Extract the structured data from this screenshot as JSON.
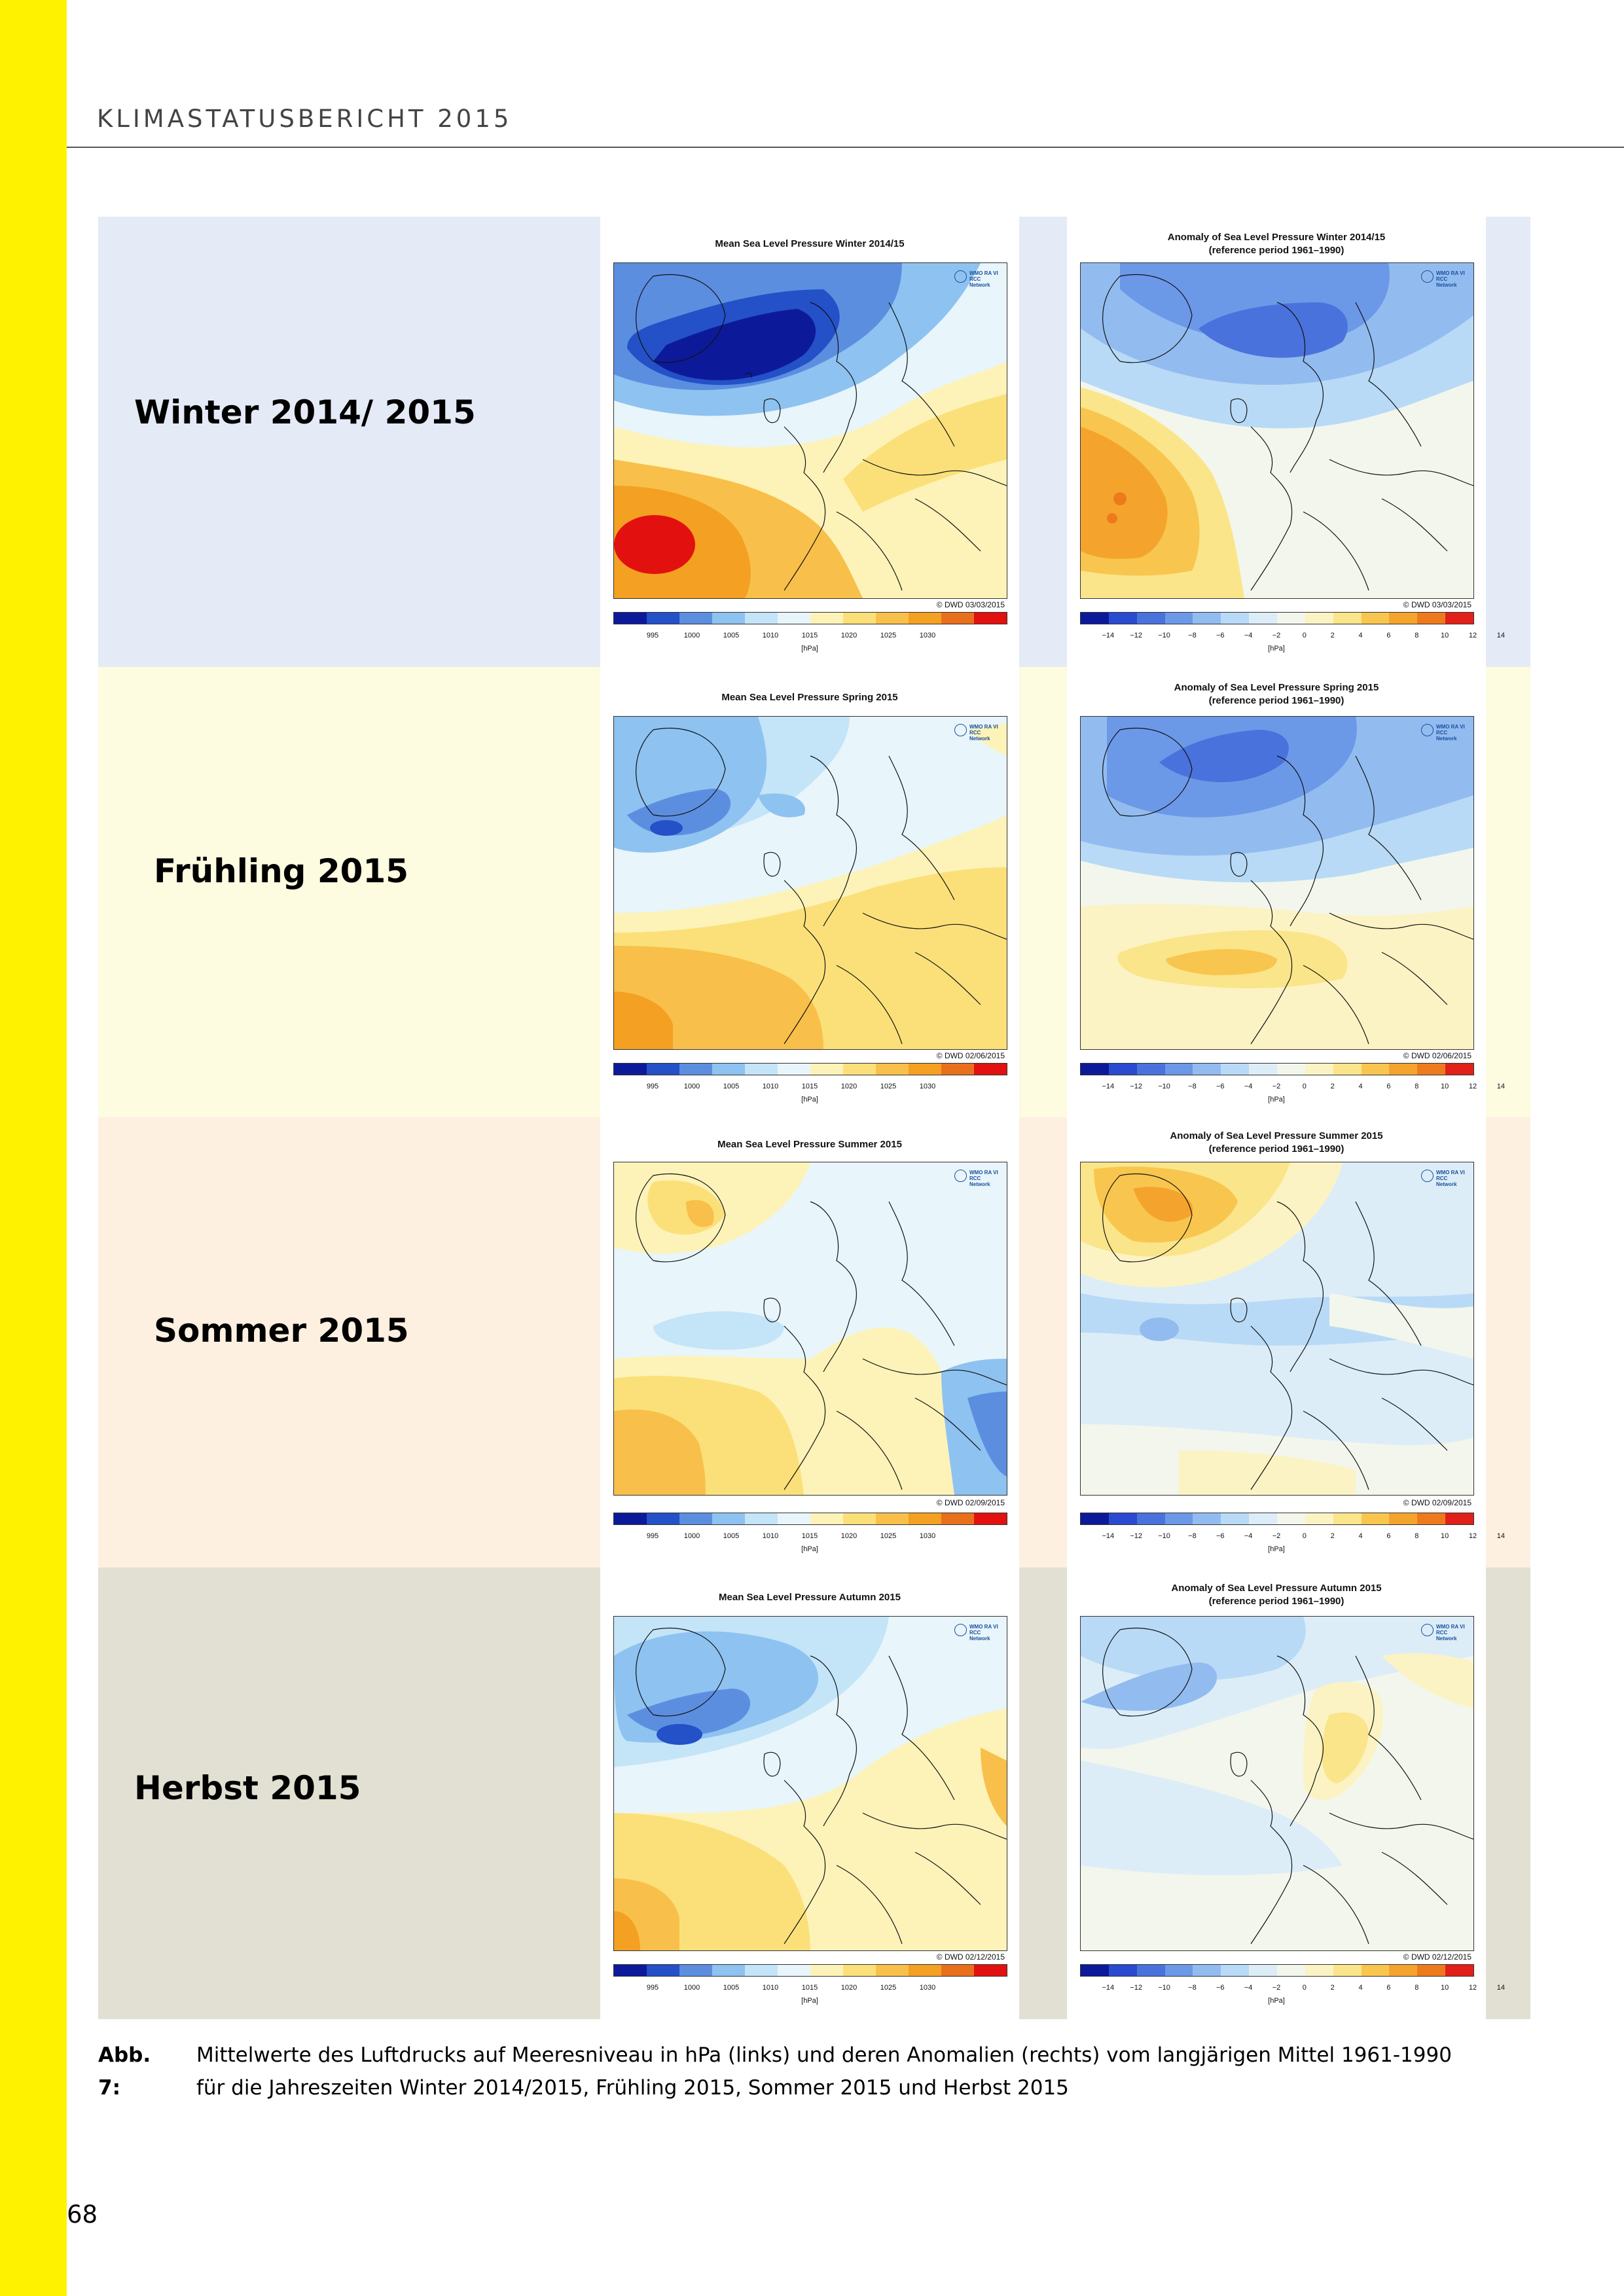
{
  "header": {
    "running_title": "KLIMASTATUSBERICHT 2015"
  },
  "colors": {
    "side_bar": "#fff200",
    "row_winter": "#e4ebf6",
    "row_spring": "#fdfbe0",
    "row_summer": "#fdf0e0",
    "row_autumn": "#e1e0d2",
    "pressure_scale": [
      "#0c1a9a",
      "#2450c8",
      "#5c8ee0",
      "#8ec2f0",
      "#c4e4f8",
      "#e8f5fb",
      "#fdf3b8",
      "#fbe07a",
      "#f8c04a",
      "#f4a022",
      "#e8701c",
      "#e31010"
    ],
    "anomaly_scale": [
      "#0c1a9a",
      "#2a4ad0",
      "#4a72dc",
      "#6c98e8",
      "#92bcf0",
      "#b8daf6",
      "#dcedf8",
      "#f2f6ec",
      "#fcf3c4",
      "#fbe58a",
      "#f8c64e",
      "#f4a42c",
      "#ee7a1e",
      "#e2201a"
    ]
  },
  "legend": {
    "pressure_ticks": [
      "995",
      "1000",
      "1005",
      "1010",
      "1015",
      "1020",
      "1025",
      "1030"
    ],
    "anomaly_ticks": [
      "−14",
      "−12",
      "−10",
      "−8",
      "−6",
      "−4",
      "−2",
      "0",
      "2",
      "4",
      "6",
      "8",
      "10",
      "12",
      "14"
    ],
    "unit": "[hPa]",
    "wmo_logo_text": "WMO RA VI RCC Network"
  },
  "rows": [
    {
      "label": "Winter 2014/ 2015",
      "mean_title": "Mean Sea Level Pressure Winter 2014/15",
      "mean_copyright": "© DWD 03/03/2015",
      "anomaly_title_line1": "Anomaly of Sea Level Pressure Winter 2014/15",
      "anomaly_title_line2": "(reference period 1961–1990)",
      "anomaly_copyright": "© DWD 03/03/2015"
    },
    {
      "label": "Frühling 2015",
      "mean_title": "Mean Sea Level Pressure Spring 2015",
      "mean_copyright": "© DWD 02/06/2015",
      "anomaly_title_line1": "Anomaly of Sea Level Pressure Spring 2015",
      "anomaly_title_line2": "(reference period 1961–1990)",
      "anomaly_copyright": "© DWD 02/06/2015"
    },
    {
      "label": "Sommer 2015",
      "mean_title": "Mean Sea Level Pressure Summer 2015",
      "mean_copyright": "© DWD 02/09/2015",
      "anomaly_title_line1": "Anomaly of Sea Level Pressure Summer 2015",
      "anomaly_title_line2": "(reference period 1961–1990)",
      "anomaly_copyright": "© DWD 02/09/2015"
    },
    {
      "label": "Herbst 2015",
      "mean_title": "Mean Sea Level Pressure Autumn 2015",
      "mean_copyright": "© DWD 02/12/2015",
      "anomaly_title_line1": "Anomaly of Sea Level Pressure Autumn 2015",
      "anomaly_title_line2": "(reference period 1961–1990)",
      "anomaly_copyright": "© DWD 02/12/2015"
    }
  ],
  "caption": {
    "label": "Abb. 7:",
    "line1": "Mittelwerte des Luftdrucks auf Meeresniveau in hPa (links) und deren Anomalien (rechts) vom langjärigen Mittel 1961-1990",
    "line2": "für die Jahreszeiten Winter 2014/2015, Frühling 2015, Sommer 2015 und Herbst 2015"
  },
  "page_number": "68"
}
